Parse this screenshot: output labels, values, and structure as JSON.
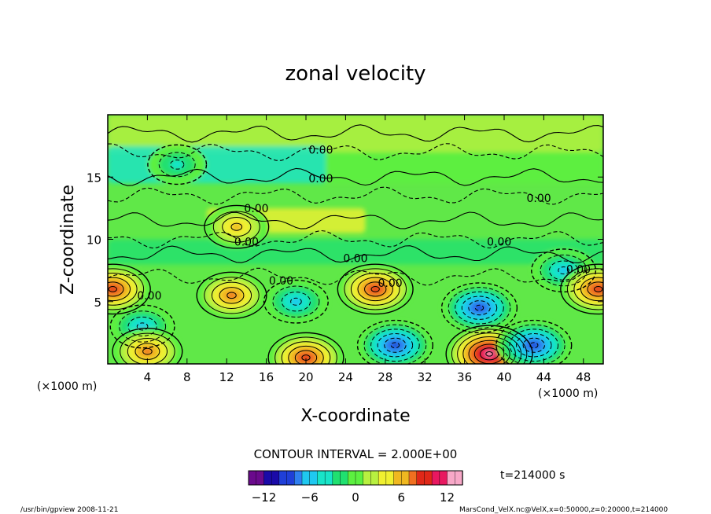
{
  "chart_data": {
    "type": "heatmap",
    "title": "zonal velocity",
    "xlabel": "X-coordinate",
    "ylabel": "Z-coordinate",
    "x_unit_label_left": "(×1000 m)",
    "x_unit_label_right": "(×1000 m)",
    "xlim": [
      0,
      50
    ],
    "ylim": [
      0,
      20
    ],
    "xticks": [
      4,
      8,
      12,
      16,
      20,
      24,
      28,
      32,
      36,
      40,
      44,
      48
    ],
    "yticks": [
      5,
      10,
      15
    ],
    "contour_interval_text": "CONTOUR INTERVAL = 2.000E+00",
    "contour_labels": [
      "0.00",
      "0.00",
      "0.00",
      "0.00",
      "0.00",
      "0.00",
      "0.00",
      "0.00",
      "0.00",
      "0.00",
      "0.00"
    ],
    "time_label": "t=214000 s",
    "colorbar": {
      "min": -14,
      "max": 14,
      "ticks": [
        -12,
        -6,
        0,
        6,
        12
      ],
      "tick_labels": [
        "−12",
        "−6",
        "0",
        "6",
        "12"
      ],
      "colors": [
        "#6a0a8c",
        "#1a0aa8",
        "#1f3fd8",
        "#2f7ff0",
        "#1fc8f0",
        "#18e4c8",
        "#20e070",
        "#5cf040",
        "#b8f040",
        "#f0f030",
        "#f0b820",
        "#f07020",
        "#e02818",
        "#e81860",
        "#f8a8c8"
      ]
    },
    "features": [
      {
        "x": 27,
        "z": 6,
        "value": 10,
        "desc": "positive maximum"
      },
      {
        "x": 37.5,
        "z": 4.5,
        "value": -10,
        "desc": "negative minimum"
      },
      {
        "x": 38.5,
        "z": 0.8,
        "value": 14,
        "desc": "positive maximum near bottom"
      },
      {
        "x": 20,
        "z": 0.5,
        "value": 10,
        "desc": "positive maximum near bottom"
      },
      {
        "x": 29,
        "z": 1.5,
        "value": -10,
        "desc": "negative minimum near bottom"
      },
      {
        "x": 43,
        "z": 1.5,
        "value": -10,
        "desc": "negative minimum near bottom"
      },
      {
        "x": 46,
        "z": 7.5,
        "value": -6,
        "desc": "negative minimum"
      },
      {
        "x": 49.5,
        "z": 6,
        "value": 10,
        "desc": "positive maximum at right edge"
      },
      {
        "x": 0.5,
        "z": 6,
        "value": 10,
        "desc": "positive maximum at left edge"
      },
      {
        "x": 12.5,
        "z": 5.5,
        "value": 8,
        "desc": "positive maximum"
      },
      {
        "x": 3.5,
        "z": 3,
        "value": -6,
        "desc": "negative minimum"
      },
      {
        "x": 4,
        "z": 1,
        "value": 8,
        "desc": "positive maximum"
      },
      {
        "x": 19,
        "z": 5,
        "value": -6,
        "desc": "negative minimum"
      },
      {
        "x": 13,
        "z": 11,
        "value": 6,
        "desc": "positive maximum"
      },
      {
        "x": 7,
        "z": 16,
        "value": -4,
        "desc": "negative minimum"
      }
    ]
  },
  "footer": {
    "left": "/usr/bin/gpview   2008-11-21",
    "right": "MarsCond_VelX.nc@VelX,x=0:50000,z=0:20000,t=214000"
  }
}
